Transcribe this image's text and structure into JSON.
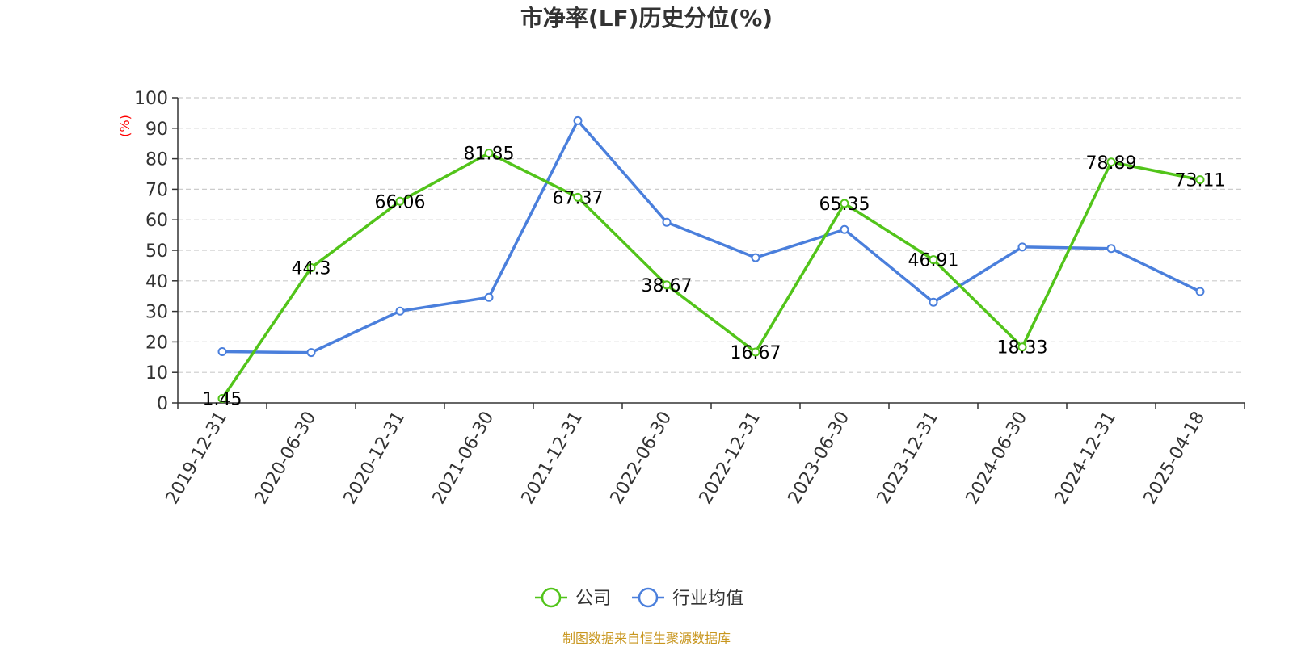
{
  "chart_data": {
    "type": "line",
    "title": "市净率(LF)历史分位(%)",
    "ylabel": "(%)",
    "ylim": [
      0,
      100
    ],
    "yticks": [
      0,
      10,
      20,
      30,
      40,
      50,
      60,
      70,
      80,
      90,
      100
    ],
    "categories": [
      "2019-12-31",
      "2020-06-30",
      "2020-12-31",
      "2021-06-30",
      "2021-12-31",
      "2022-06-30",
      "2022-12-31",
      "2023-06-30",
      "2023-12-31",
      "2024-06-30",
      "2024-12-31",
      "2025-04-18"
    ],
    "series": [
      {
        "name": "公司",
        "color": "#52c41a",
        "show_labels": true,
        "values": [
          1.45,
          44.3,
          66.06,
          81.85,
          67.37,
          38.67,
          16.67,
          65.35,
          46.91,
          18.33,
          78.89,
          73.11
        ]
      },
      {
        "name": "行业均值",
        "color": "#4a7fdc",
        "show_labels": false,
        "values": [
          16.8,
          16.5,
          30.1,
          34.6,
          92.5,
          59.2,
          47.6,
          56.8,
          33.0,
          51.1,
          50.6,
          36.5
        ]
      }
    ],
    "grid": true,
    "legend_position": "bottom-center",
    "source_text": "制图数据来自恒生聚源数据库"
  }
}
